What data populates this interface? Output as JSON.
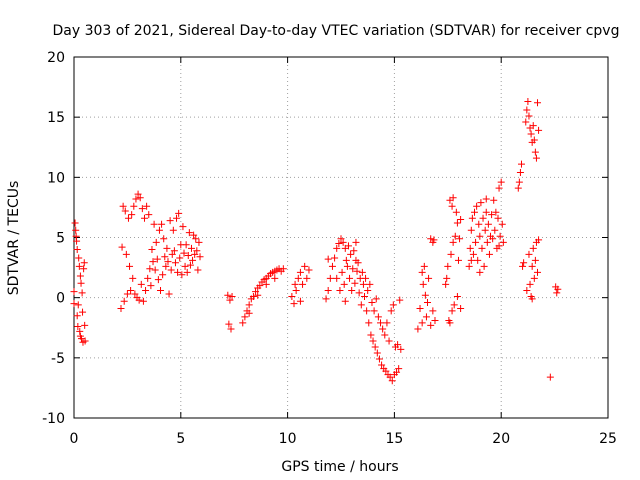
{
  "chart_data": {
    "type": "scatter",
    "title": "Day 303 of 2021, Sidereal Day-to-day VTEC variation (SDTVAR) for receiver cpvg",
    "xlabel": "GPS time / hours",
    "ylabel": "SDTVAR / TECUs",
    "xlim": [
      0,
      25
    ],
    "ylim": [
      -10,
      20
    ],
    "xticks": [
      0,
      5,
      10,
      15,
      20,
      25
    ],
    "yticks": [
      -10,
      -5,
      0,
      5,
      10,
      15,
      20
    ],
    "xtick_labels": [
      "0",
      "5",
      "10",
      "15",
      "20",
      "25"
    ],
    "ytick_labels": [
      "-10",
      "-5",
      "0",
      "5",
      "10",
      "15",
      "20"
    ],
    "grid": true,
    "marker": "+",
    "color": "#ff0000",
    "series": [
      {
        "name": "SDTVAR",
        "points": [
          [
            0.0,
            -0.5
          ],
          [
            0.0,
            0.5
          ],
          [
            0.05,
            6.2
          ],
          [
            0.08,
            5.6
          ],
          [
            0.1,
            5.1
          ],
          [
            0.12,
            4.7
          ],
          [
            0.15,
            4.0
          ],
          [
            0.15,
            -1.5
          ],
          [
            0.18,
            -2.4
          ],
          [
            0.2,
            -0.6
          ],
          [
            0.22,
            3.3
          ],
          [
            0.25,
            2.6
          ],
          [
            0.27,
            -2.8
          ],
          [
            0.3,
            1.8
          ],
          [
            0.3,
            -3.2
          ],
          [
            0.33,
            1.2
          ],
          [
            0.35,
            -3.4
          ],
          [
            0.38,
            0.4
          ],
          [
            0.4,
            -1.2
          ],
          [
            0.42,
            -3.7
          ],
          [
            0.45,
            2.4
          ],
          [
            0.48,
            2.9
          ],
          [
            0.5,
            -2.3
          ],
          [
            0.52,
            -3.6
          ],
          [
            2.2,
            -0.9
          ],
          [
            2.25,
            4.2
          ],
          [
            2.3,
            7.6
          ],
          [
            2.35,
            -0.3
          ],
          [
            2.4,
            7.2
          ],
          [
            2.45,
            3.6
          ],
          [
            2.5,
            0.3
          ],
          [
            2.55,
            6.6
          ],
          [
            2.6,
            2.6
          ],
          [
            2.65,
            0.6
          ],
          [
            2.7,
            6.9
          ],
          [
            2.75,
            1.6
          ],
          [
            2.8,
            7.6
          ],
          [
            2.85,
            0.3
          ],
          [
            2.9,
            8.2
          ],
          [
            2.95,
            0.0
          ],
          [
            3.0,
            8.6
          ],
          [
            3.05,
            -0.2
          ],
          [
            3.1,
            8.3
          ],
          [
            3.15,
            1.1
          ],
          [
            3.2,
            7.4
          ],
          [
            3.25,
            -0.3
          ],
          [
            3.3,
            6.6
          ],
          [
            3.35,
            0.6
          ],
          [
            3.4,
            7.6
          ],
          [
            3.45,
            1.6
          ],
          [
            3.5,
            6.9
          ],
          [
            3.55,
            2.4
          ],
          [
            3.6,
            1.0
          ],
          [
            3.65,
            4.0
          ],
          [
            3.7,
            3.0
          ],
          [
            3.75,
            6.1
          ],
          [
            3.8,
            2.3
          ],
          [
            3.85,
            4.6
          ],
          [
            3.9,
            3.2
          ],
          [
            3.95,
            1.5
          ],
          [
            4.0,
            5.6
          ],
          [
            4.05,
            0.6
          ],
          [
            4.1,
            6.1
          ],
          [
            4.15,
            1.9
          ],
          [
            4.2,
            4.9
          ],
          [
            4.25,
            3.4
          ],
          [
            4.3,
            2.6
          ],
          [
            4.35,
            4.1
          ],
          [
            4.4,
            3.0
          ],
          [
            4.45,
            0.3
          ],
          [
            4.5,
            6.4
          ],
          [
            4.55,
            2.3
          ],
          [
            4.6,
            3.6
          ],
          [
            4.65,
            5.6
          ],
          [
            4.7,
            3.9
          ],
          [
            4.75,
            2.9
          ],
          [
            4.8,
            6.6
          ],
          [
            4.85,
            2.1
          ],
          [
            4.9,
            7.0
          ],
          [
            4.95,
            3.3
          ],
          [
            5.0,
            4.4
          ],
          [
            5.05,
            1.9
          ],
          [
            5.1,
            5.9
          ],
          [
            5.15,
            3.7
          ],
          [
            5.2,
            2.6
          ],
          [
            5.25,
            4.4
          ],
          [
            5.3,
            2.1
          ],
          [
            5.35,
            3.5
          ],
          [
            5.4,
            5.4
          ],
          [
            5.45,
            2.7
          ],
          [
            5.5,
            4.1
          ],
          [
            5.55,
            3.1
          ],
          [
            5.6,
            5.2
          ],
          [
            5.65,
            3.6
          ],
          [
            5.7,
            4.9
          ],
          [
            5.75,
            3.9
          ],
          [
            5.8,
            2.3
          ],
          [
            5.85,
            4.6
          ],
          [
            5.9,
            3.4
          ],
          [
            7.2,
            0.2
          ],
          [
            7.25,
            -2.2
          ],
          [
            7.3,
            -0.2
          ],
          [
            7.35,
            -2.6
          ],
          [
            7.4,
            0.1
          ],
          [
            7.9,
            -2.1
          ],
          [
            8.0,
            -1.6
          ],
          [
            8.1,
            -1.1
          ],
          [
            8.2,
            -0.6
          ],
          [
            8.3,
            -0.1
          ],
          [
            8.4,
            0.1
          ],
          [
            8.5,
            0.5
          ],
          [
            8.6,
            0.8
          ],
          [
            8.7,
            1.0
          ],
          [
            8.8,
            1.3
          ],
          [
            8.9,
            1.5
          ],
          [
            9.0,
            1.6
          ],
          [
            9.1,
            1.8
          ],
          [
            9.2,
            2.0
          ],
          [
            9.3,
            2.1
          ],
          [
            9.4,
            2.2
          ],
          [
            9.5,
            2.3
          ],
          [
            9.6,
            2.4
          ],
          [
            9.7,
            2.2
          ],
          [
            9.8,
            2.4
          ],
          [
            8.2,
            -1.3
          ],
          [
            8.6,
            0.2
          ],
          [
            9.0,
            1.1
          ],
          [
            9.4,
            1.6
          ],
          [
            10.3,
            -0.5
          ],
          [
            10.4,
            0.6
          ],
          [
            10.5,
            1.6
          ],
          [
            10.6,
            2.1
          ],
          [
            10.7,
            1.1
          ],
          [
            10.8,
            2.6
          ],
          [
            10.9,
            1.6
          ],
          [
            11.0,
            2.3
          ],
          [
            10.2,
            0.1
          ],
          [
            10.35,
            1.1
          ],
          [
            10.6,
            -0.3
          ],
          [
            11.8,
            -0.1
          ],
          [
            11.9,
            0.6
          ],
          [
            12.0,
            1.6
          ],
          [
            12.1,
            2.6
          ],
          [
            12.2,
            3.3
          ],
          [
            12.3,
            4.1
          ],
          [
            12.4,
            4.5
          ],
          [
            12.5,
            4.9
          ],
          [
            12.55,
            2.1
          ],
          [
            12.6,
            4.6
          ],
          [
            12.65,
            1.1
          ],
          [
            12.7,
            4.1
          ],
          [
            12.75,
            3.1
          ],
          [
            12.8,
            2.6
          ],
          [
            12.85,
            4.3
          ],
          [
            12.9,
            1.6
          ],
          [
            12.95,
            3.6
          ],
          [
            13.0,
            0.6
          ],
          [
            13.05,
            2.4
          ],
          [
            13.1,
            3.9
          ],
          [
            13.15,
            1.2
          ],
          [
            13.2,
            3.1
          ],
          [
            13.25,
            2.2
          ],
          [
            13.3,
            2.9
          ],
          [
            13.35,
            0.4
          ],
          [
            13.4,
            1.6
          ],
          [
            13.45,
            -0.6
          ],
          [
            13.5,
            2.1
          ],
          [
            13.55,
            1.1
          ],
          [
            13.6,
            0.1
          ],
          [
            13.65,
            1.6
          ],
          [
            13.7,
            -1.1
          ],
          [
            13.75,
            0.6
          ],
          [
            13.8,
            -2.1
          ],
          [
            13.85,
            1.1
          ],
          [
            13.9,
            -3.1
          ],
          [
            13.95,
            -0.4
          ],
          [
            14.0,
            -3.6
          ],
          [
            14.05,
            -1.1
          ],
          [
            14.1,
            -4.1
          ],
          [
            14.15,
            -0.1
          ],
          [
            14.2,
            -4.6
          ],
          [
            14.25,
            -1.6
          ],
          [
            14.3,
            -5.1
          ],
          [
            14.35,
            -2.1
          ],
          [
            14.4,
            -5.6
          ],
          [
            14.45,
            -2.6
          ],
          [
            14.5,
            -5.9
          ],
          [
            14.55,
            -3.1
          ],
          [
            14.6,
            -6.1
          ],
          [
            14.65,
            -2.1
          ],
          [
            14.7,
            -6.4
          ],
          [
            14.75,
            -3.6
          ],
          [
            14.8,
            -6.6
          ],
          [
            14.85,
            -1.1
          ],
          [
            14.9,
            -6.9
          ],
          [
            14.95,
            -0.6
          ],
          [
            15.0,
            -6.4
          ],
          [
            15.05,
            -4.1
          ],
          [
            15.1,
            -6.2
          ],
          [
            15.15,
            -3.9
          ],
          [
            15.2,
            -5.9
          ],
          [
            15.25,
            -0.2
          ],
          [
            15.3,
            -4.3
          ],
          [
            12.3,
            1.6
          ],
          [
            12.45,
            0.6
          ],
          [
            12.7,
            -0.3
          ],
          [
            13.2,
            4.6
          ],
          [
            11.9,
            3.2
          ],
          [
            16.1,
            -2.6
          ],
          [
            16.2,
            -0.9
          ],
          [
            16.3,
            -2.1
          ],
          [
            16.35,
            1.1
          ],
          [
            16.4,
            2.6
          ],
          [
            16.5,
            -1.6
          ],
          [
            16.55,
            -0.4
          ],
          [
            16.6,
            1.6
          ],
          [
            16.7,
            -2.3
          ],
          [
            16.8,
            -1.1
          ],
          [
            16.7,
            4.9
          ],
          [
            16.8,
            4.6
          ],
          [
            16.3,
            2.1
          ],
          [
            16.45,
            0.2
          ],
          [
            16.9,
            -1.9
          ],
          [
            16.85,
            4.8
          ],
          [
            17.4,
            1.1
          ],
          [
            17.45,
            1.6
          ],
          [
            17.5,
            2.6
          ],
          [
            17.6,
            8.1
          ],
          [
            17.65,
            3.6
          ],
          [
            17.7,
            7.6
          ],
          [
            17.75,
            4.6
          ],
          [
            17.8,
            -0.6
          ],
          [
            17.85,
            5.1
          ],
          [
            17.9,
            7.1
          ],
          [
            17.95,
            0.1
          ],
          [
            18.0,
            3.1
          ],
          [
            18.05,
            4.9
          ],
          [
            18.1,
            -0.9
          ],
          [
            17.55,
            -1.9
          ],
          [
            17.7,
            -1.1
          ],
          [
            17.75,
            8.3
          ],
          [
            17.95,
            6.2
          ],
          [
            17.6,
            -2.1
          ],
          [
            18.1,
            6.5
          ],
          [
            18.5,
            2.6
          ],
          [
            18.55,
            4.1
          ],
          [
            18.6,
            5.6
          ],
          [
            18.65,
            6.6
          ],
          [
            18.7,
            3.6
          ],
          [
            18.75,
            7.1
          ],
          [
            18.8,
            4.6
          ],
          [
            18.85,
            7.6
          ],
          [
            18.9,
            3.1
          ],
          [
            18.95,
            6.1
          ],
          [
            19.0,
            5.1
          ],
          [
            19.05,
            7.9
          ],
          [
            19.1,
            4.1
          ],
          [
            19.15,
            6.6
          ],
          [
            19.2,
            2.6
          ],
          [
            19.25,
            5.6
          ],
          [
            19.3,
            7.1
          ],
          [
            19.35,
            4.6
          ],
          [
            19.4,
            6.1
          ],
          [
            19.45,
            3.6
          ],
          [
            19.5,
            5.1
          ],
          [
            19.55,
            6.9
          ],
          [
            19.6,
            4.9
          ],
          [
            19.65,
            8.1
          ],
          [
            19.7,
            5.6
          ],
          [
            19.75,
            7.1
          ],
          [
            19.8,
            4.1
          ],
          [
            19.85,
            6.6
          ],
          [
            19.9,
            9.1
          ],
          [
            19.95,
            5.1
          ],
          [
            20.0,
            9.6
          ],
          [
            20.05,
            6.1
          ],
          [
            20.1,
            4.6
          ],
          [
            18.6,
            3.1
          ],
          [
            19.0,
            2.1
          ],
          [
            19.3,
            8.2
          ],
          [
            19.9,
            4.3
          ],
          [
            20.8,
            9.1
          ],
          [
            20.85,
            9.6
          ],
          [
            20.9,
            10.4
          ],
          [
            20.95,
            11.1
          ],
          [
            21.0,
            2.6
          ],
          [
            21.05,
            2.9
          ],
          [
            21.15,
            14.6
          ],
          [
            21.2,
            15.6
          ],
          [
            21.25,
            16.3
          ],
          [
            21.3,
            15.1
          ],
          [
            21.35,
            14.1
          ],
          [
            21.4,
            13.6
          ],
          [
            21.45,
            12.9
          ],
          [
            21.5,
            14.3
          ],
          [
            21.55,
            13.1
          ],
          [
            21.6,
            12.1
          ],
          [
            21.65,
            11.6
          ],
          [
            21.7,
            16.2
          ],
          [
            21.75,
            13.9
          ],
          [
            21.3,
            3.6
          ],
          [
            21.35,
            1.1
          ],
          [
            21.4,
            0.1
          ],
          [
            21.45,
            2.6
          ],
          [
            21.5,
            4.1
          ],
          [
            21.55,
            1.6
          ],
          [
            21.6,
            3.1
          ],
          [
            21.65,
            4.6
          ],
          [
            21.7,
            2.1
          ],
          [
            21.75,
            4.8
          ],
          [
            21.2,
            0.6
          ],
          [
            21.45,
            -0.1
          ],
          [
            22.3,
            -6.6
          ],
          [
            22.55,
            0.9
          ],
          [
            22.6,
            0.4
          ],
          [
            22.65,
            0.7
          ]
        ]
      }
    ]
  }
}
